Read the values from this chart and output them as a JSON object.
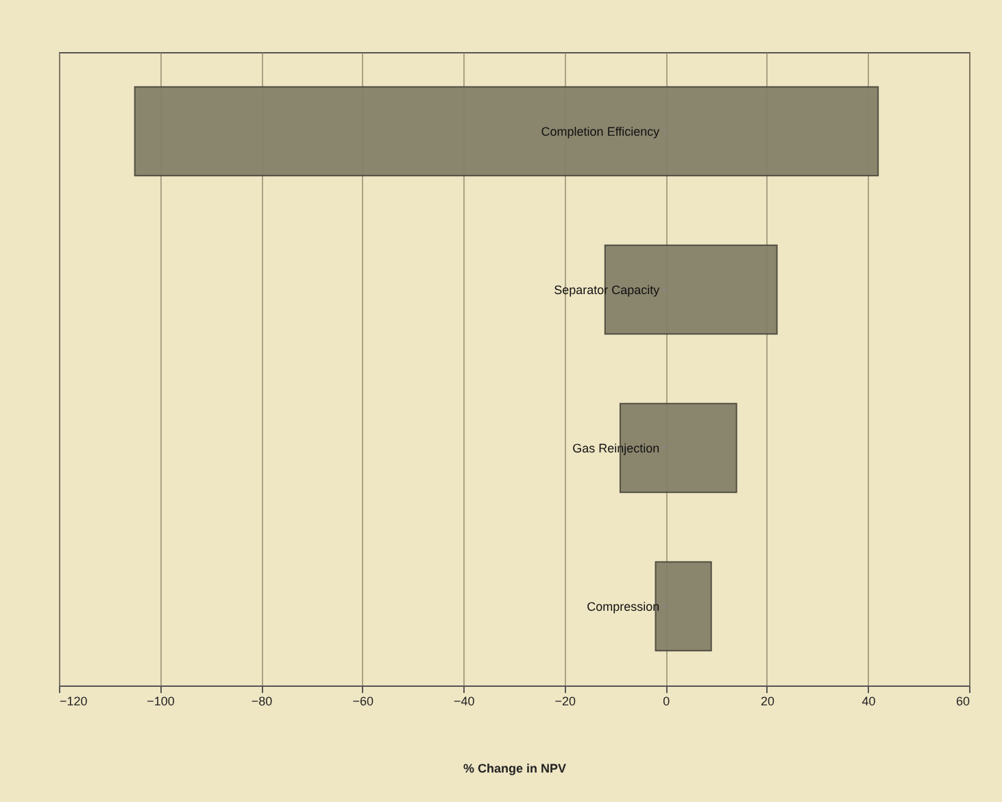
{
  "chart_data": {
    "type": "bar",
    "orientation": "horizontal",
    "xlabel": "% Change in NPV",
    "categories": [
      "Completion Efficiency",
      "Separator Capacity",
      "Gas Reinjection",
      "Compression"
    ],
    "base": [
      -105,
      -12,
      -9,
      -2
    ],
    "values": [
      147,
      34,
      23,
      11
    ],
    "color": "#858069",
    "xlim": [
      -120,
      60
    ],
    "xticks": [
      -120,
      -100,
      -80,
      -60,
      -40,
      -20,
      0,
      20,
      40,
      60
    ],
    "grid": "x"
  }
}
